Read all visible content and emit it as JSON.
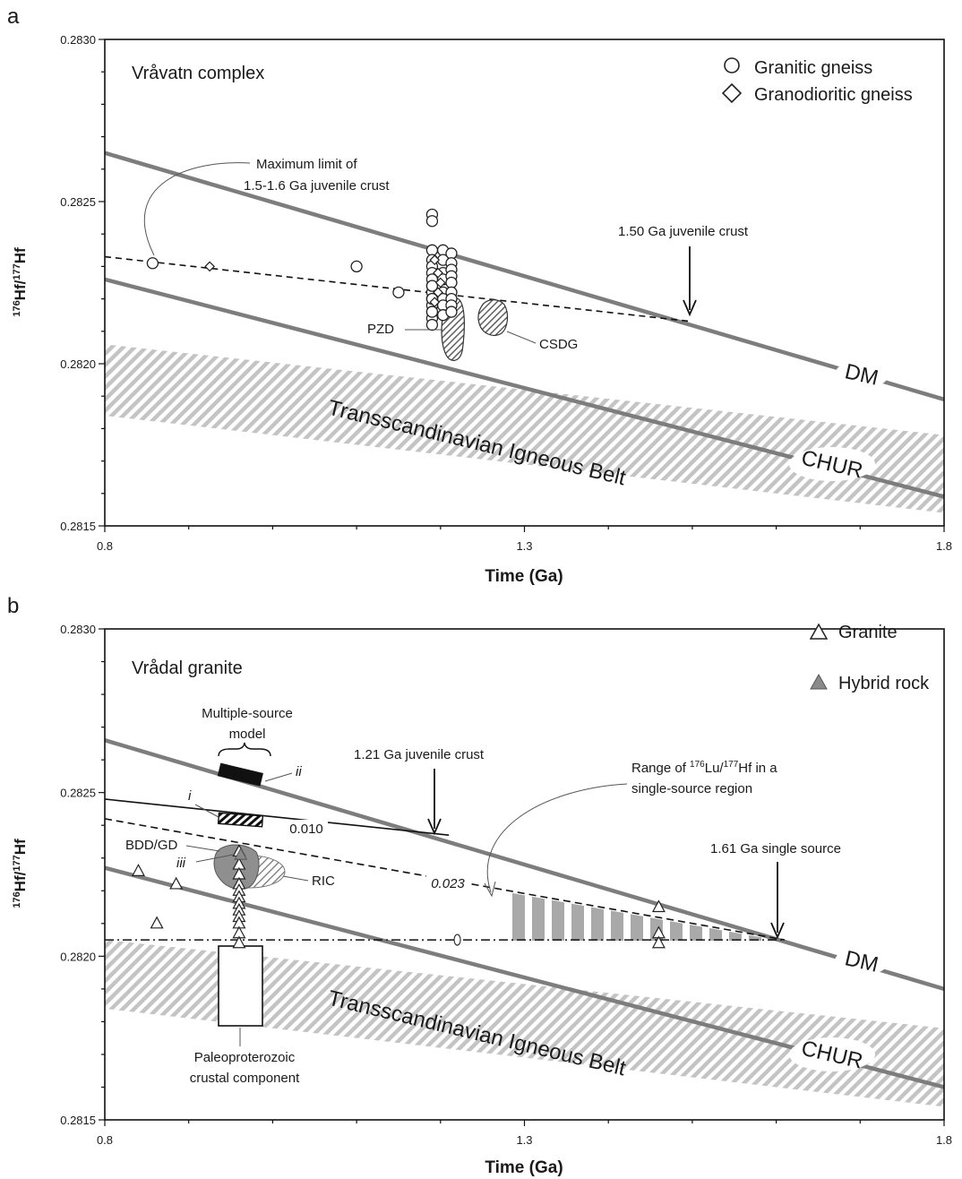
{
  "chart_data": [
    {
      "panel_label": "a",
      "type": "scatter",
      "title": "Vråvatn complex",
      "xlabel": "Time (Ga)",
      "ylabel_main": "Hf/",
      "ylabel_sup1": "176",
      "ylabel_sup2": "177",
      "ylabel_end": "Hf",
      "xlim": [
        0.8,
        1.8
      ],
      "ylim": [
        0.2815,
        0.283
      ],
      "x_ticks": [
        "0.8",
        "1.3",
        "1.8"
      ],
      "y_ticks": [
        "0.2830",
        "0.2825",
        "0.2820",
        "0.2815"
      ],
      "legend": [
        {
          "label": "Granitic gneiss",
          "marker": "circle"
        },
        {
          "label": "Granodioritic gneiss",
          "marker": "diamond"
        }
      ],
      "reference_lines": [
        {
          "label": "DM",
          "x": [
            0.8,
            1.8
          ],
          "y": [
            0.28265,
            0.28189
          ]
        },
        {
          "label": "CHUR",
          "x": [
            0.8,
            1.8
          ],
          "y": [
            0.28226,
            0.28159
          ]
        }
      ],
      "trend_line": {
        "x": [
          0.8,
          1.5
        ],
        "y": [
          0.28233,
          0.28213
        ]
      },
      "band": {
        "label": "Transscandinavian Igneous Belt",
        "x": [
          0.8,
          1.8
        ],
        "upper": [
          0.28206,
          0.28178
        ],
        "lower": [
          0.28184,
          0.28154
        ]
      },
      "series": [
        {
          "name": "Granitic gneiss",
          "marker": "circle",
          "x": [
            0.857,
            1.1,
            1.15,
            1.19,
            1.19,
            1.19,
            1.19,
            1.19,
            1.19,
            1.19,
            1.19,
            1.19,
            1.19,
            1.19,
            1.19,
            1.19,
            1.19,
            1.19,
            1.19,
            1.19,
            1.203,
            1.203,
            1.203,
            1.203,
            1.203,
            1.203,
            1.203,
            1.203,
            1.213,
            1.213,
            1.213,
            1.213,
            1.213,
            1.213,
            1.213,
            1.213,
            1.213
          ],
          "y": [
            0.28231,
            0.2823,
            0.28222,
            0.28246,
            0.28244,
            0.28235,
            0.28232,
            0.2823,
            0.28228,
            0.28226,
            0.28224,
            0.28222,
            0.2822,
            0.28218,
            0.28216,
            0.28214,
            0.28212,
            0.28216,
            0.2822,
            0.28224,
            0.28235,
            0.28232,
            0.28228,
            0.28226,
            0.28222,
            0.2822,
            0.28218,
            0.28215,
            0.28234,
            0.28231,
            0.28229,
            0.28227,
            0.28225,
            0.28222,
            0.2822,
            0.28218,
            0.28216
          ]
        },
        {
          "name": "Granodioritic gneiss",
          "marker": "diamond",
          "x": [
            0.925,
            1.193,
            1.197,
            1.2,
            1.197,
            1.193
          ],
          "y": [
            0.2823,
            0.28232,
            0.28228,
            0.28225,
            0.28222,
            0.28219
          ]
        }
      ],
      "annotations": [
        {
          "text_line1": "Maximum limit of",
          "text_line2": "1.5-1.6 Ga juvenile crust"
        },
        {
          "text": "1.50 Ga juvenile crust"
        },
        {
          "text": "PZD"
        },
        {
          "text": "CSDG"
        }
      ],
      "labels": {
        "dm": "DM",
        "chur": "CHUR",
        "tib": "Transscandinavian Igneous Belt"
      }
    },
    {
      "panel_label": "b",
      "type": "scatter",
      "title": "Vrådal granite",
      "xlabel": "Time (Ga)",
      "ylabel_main": "Hf/",
      "ylabel_sup1": "176",
      "ylabel_sup2": "177",
      "ylabel_end": "Hf",
      "xlim": [
        0.8,
        1.8
      ],
      "ylim": [
        0.2815,
        0.283
      ],
      "x_ticks": [
        "0.8",
        "1.3",
        "1.8"
      ],
      "y_ticks": [
        "0.2830",
        "0.2825",
        "0.2820",
        "0.2815"
      ],
      "legend": [
        {
          "label": "Granite",
          "marker": "triangle-open"
        },
        {
          "label": "Hybrid rock",
          "marker": "triangle-filled"
        }
      ],
      "reference_lines": [
        {
          "label": "DM",
          "x": [
            0.8,
            1.8
          ],
          "y": [
            0.28266,
            0.2819
          ]
        },
        {
          "label": "CHUR",
          "x": [
            0.8,
            1.8
          ],
          "y": [
            0.28227,
            0.2816
          ]
        }
      ],
      "single_source_line": {
        "x": [
          0.8,
          1.61
        ],
        "y": [
          0.28205,
          0.28205
        ]
      },
      "line_023": {
        "x": [
          0.8,
          1.61
        ],
        "y": [
          0.28242,
          0.28205
        ]
      },
      "line_010": {
        "x": [
          0.8,
          1.21
        ],
        "y": [
          0.28248,
          0.28237
        ]
      },
      "band": {
        "label": "Transscandinavian Igneous Belt",
        "x": [
          0.8,
          1.8
        ],
        "upper": [
          0.28205,
          0.28178
        ],
        "lower": [
          0.28184,
          0.28154
        ]
      },
      "series": [
        {
          "name": "Granite",
          "marker": "triangle-open",
          "x": [
            0.84,
            0.885,
            0.862,
            0.96,
            0.96,
            0.96,
            0.96,
            0.96,
            0.96,
            0.96,
            0.96,
            0.96,
            0.96,
            0.96,
            0.96,
            1.46,
            1.46,
            1.46
          ],
          "y": [
            0.28226,
            0.28222,
            0.2821,
            0.28232,
            0.28228,
            0.28225,
            0.28222,
            0.2822,
            0.28218,
            0.28216,
            0.28214,
            0.28212,
            0.2821,
            0.28207,
            0.28204,
            0.28215,
            0.28207,
            0.28204
          ]
        },
        {
          "name": "Hybrid rock",
          "marker": "triangle-filled",
          "x": [
            0.962
          ],
          "y": [
            0.28231
          ]
        }
      ],
      "annotations": [
        {
          "text_line1": "Multiple-source",
          "text_line2": "model"
        },
        {
          "text": "1.21 Ga juvenile crust"
        },
        {
          "text_line1": "Range of ",
          "sup1": "176",
          "mid": "Lu/",
          "sup2": "177",
          "end": "Hf in a",
          "text_line2": "single-source region"
        },
        {
          "text": "1.61 Ga single source"
        },
        {
          "text": "0.010"
        },
        {
          "text": "0.023"
        },
        {
          "text": "i"
        },
        {
          "text": "ii"
        },
        {
          "text": "iii"
        },
        {
          "text": "BDD/GD"
        },
        {
          "text": "RIC"
        },
        {
          "text_line1": "Paleoproterozoic",
          "text_line2": "crustal component"
        }
      ],
      "labels": {
        "dm": "DM",
        "chur": "CHUR",
        "tib": "Transscandinavian Igneous Belt"
      }
    }
  ]
}
